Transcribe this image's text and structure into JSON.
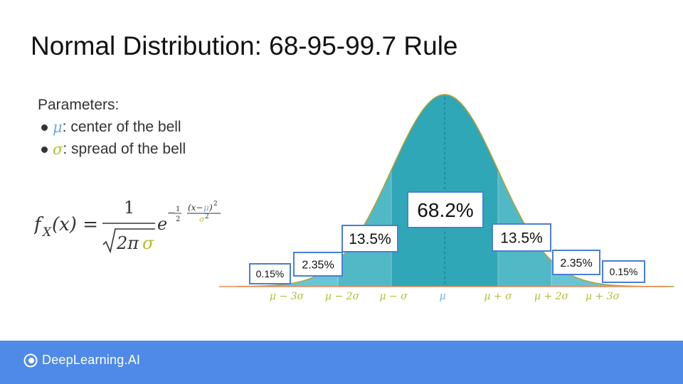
{
  "slide": {
    "title": "Normal Distribution: 68-95-99.7 Rule"
  },
  "parameters": {
    "heading": "Parameters:",
    "items": [
      {
        "symbol": "μ",
        "text": ": center of the bell",
        "color": "#6aaee0"
      },
      {
        "symbol": "σ",
        "text": ": spread of the bell",
        "color": "#b5bd2c"
      }
    ]
  },
  "formula": {
    "lhs_f": "f",
    "lhs_sub": "X",
    "lhs_arg": "(x) =",
    "numerator": "1",
    "den_root": "2π",
    "den_sigma": "σ",
    "base": "e",
    "exp_minus": "−",
    "exp_half_num": "1",
    "exp_half_den": "2",
    "exp_frac_num_open": "(x−",
    "exp_frac_num_mu": "μ",
    "exp_frac_num_close": ")",
    "exp_frac_num_pow": "2",
    "exp_frac_den_sigma": "σ",
    "exp_frac_den_pow": "2"
  },
  "chart_data": {
    "type": "area",
    "distribution": "normal",
    "mean": 0,
    "sd": 1,
    "xlim": [
      -3.9,
      4.3
    ],
    "curve_colors": {
      "edge": "#b0a43b",
      "tail_fill": "#5cc0cf",
      "band2_fill": "#42b2c1",
      "band1_fill": "#1e9fb0",
      "baseline": "#e88c5a",
      "label_border": "#4a7fd4"
    },
    "regions": [
      {
        "from": -3.9,
        "to": -3,
        "percent": "0.15%"
      },
      {
        "from": -3,
        "to": -2,
        "percent": "2.35%"
      },
      {
        "from": -2,
        "to": -1,
        "percent": "13.5%"
      },
      {
        "from": -1,
        "to": 1,
        "percent": "68.2%"
      },
      {
        "from": 1,
        "to": 2,
        "percent": "13.5%"
      },
      {
        "from": 2,
        "to": 3,
        "percent": "2.35%"
      },
      {
        "from": 3,
        "to": 4.3,
        "percent": "0.15%"
      }
    ],
    "ticks": [
      {
        "x": -3,
        "label": "μ − 3σ"
      },
      {
        "x": -2,
        "label": "μ − 2σ"
      },
      {
        "x": -1,
        "label": "μ − σ"
      },
      {
        "x": 0,
        "label": "μ"
      },
      {
        "x": 1,
        "label": "μ + σ"
      },
      {
        "x": 2,
        "label": "μ + 2σ"
      },
      {
        "x": 3,
        "label": "μ + 3σ"
      }
    ],
    "tick_color": "#b5bd2c",
    "mu_color": "#6aaee0"
  },
  "footer": {
    "brand": "DeepLearning.AI",
    "color": "#4f8ae8"
  }
}
